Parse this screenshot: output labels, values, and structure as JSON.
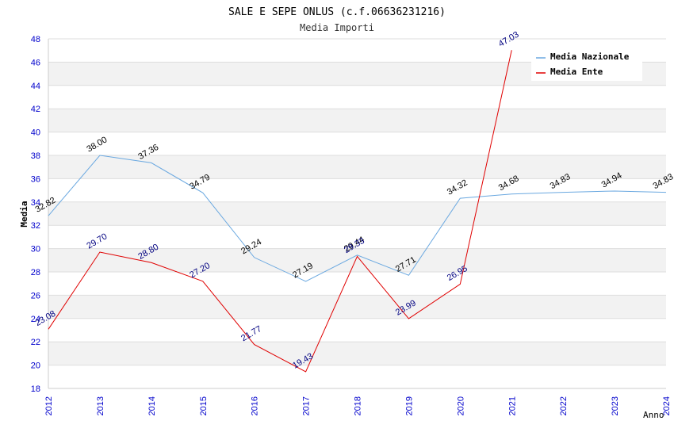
{
  "chart_data": {
    "type": "line",
    "title": "SALE E SEPE ONLUS (c.f.06636231216)",
    "subtitle": "Media Importi",
    "xlabel": "Anno",
    "ylabel": "Media",
    "ylim": [
      18,
      48
    ],
    "yticks": [
      "18",
      "20",
      "22",
      "24",
      "26",
      "28",
      "30",
      "32",
      "34",
      "36",
      "38",
      "40",
      "42",
      "44",
      "46",
      "48"
    ],
    "categories": [
      "2012",
      "2013",
      "2014",
      "2015",
      "2016",
      "2017",
      "2018",
      "2019",
      "2020",
      "2021",
      "2022",
      "2023",
      "2024"
    ],
    "series": [
      {
        "name": "Media Nazionale",
        "color": "#6aa8e0",
        "label_color": "#000000",
        "values": [
          32.82,
          38.0,
          37.36,
          34.79,
          29.24,
          27.19,
          29.44,
          27.71,
          34.32,
          34.68,
          34.83,
          34.94,
          34.83
        ],
        "labels": [
          "32.82",
          "38.00",
          "37.36",
          "34.79",
          "29.24",
          "27.19",
          "29.44",
          "27.71",
          "34.32",
          "34.68",
          "34.83",
          "34.94",
          "34.83"
        ]
      },
      {
        "name": "Media Ente",
        "color": "#e00000",
        "label_color": "#000080",
        "values": [
          23.08,
          29.7,
          28.8,
          27.2,
          21.77,
          19.43,
          29.33,
          23.99,
          26.95,
          47.03,
          null,
          null,
          null
        ],
        "labels": [
          "23.08",
          "29.70",
          "28.80",
          "27.20",
          "21.77",
          "19.43",
          "29.33",
          "23.99",
          "26.95",
          "47.03",
          null,
          null,
          null
        ]
      }
    ],
    "grid": true,
    "legend": "top-right"
  }
}
